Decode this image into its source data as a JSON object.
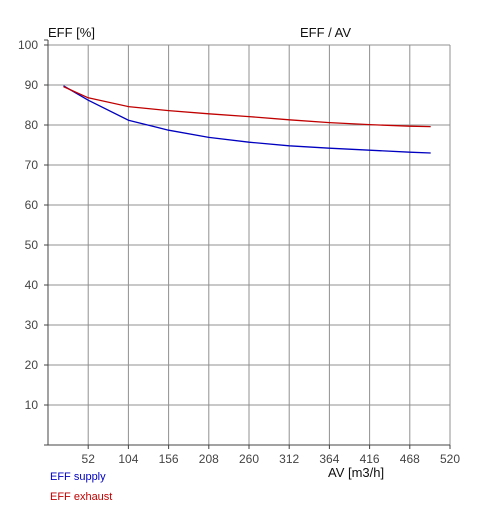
{
  "chart_data": {
    "type": "line",
    "title": "EFF / AV",
    "ylabel": "EFF [%]",
    "xlabel": "AV [m3/h]",
    "xlim": [
      0,
      520
    ],
    "ylim": [
      0,
      100
    ],
    "x_ticks": [
      52,
      104,
      156,
      208,
      260,
      312,
      364,
      416,
      468,
      520
    ],
    "y_ticks": [
      10,
      20,
      30,
      40,
      50,
      60,
      70,
      80,
      90,
      100
    ],
    "grid": true,
    "legend_position": "bottom-left",
    "series": [
      {
        "name": "EFF supply",
        "color": "#0000c0",
        "points": [
          [
            20,
            89.8
          ],
          [
            52,
            86.2
          ],
          [
            104,
            81.2
          ],
          [
            156,
            78.7
          ],
          [
            208,
            76.9
          ],
          [
            260,
            75.7
          ],
          [
            312,
            74.8
          ],
          [
            364,
            74.2
          ],
          [
            416,
            73.7
          ],
          [
            468,
            73.2
          ],
          [
            495,
            73.0
          ]
        ]
      },
      {
        "name": "EFF exhaust",
        "color": "#c00000",
        "points": [
          [
            20,
            89.6
          ],
          [
            52,
            86.8
          ],
          [
            104,
            84.6
          ],
          [
            156,
            83.6
          ],
          [
            208,
            82.8
          ],
          [
            260,
            82.1
          ],
          [
            312,
            81.3
          ],
          [
            364,
            80.6
          ],
          [
            416,
            80.1
          ],
          [
            468,
            79.7
          ],
          [
            495,
            79.6
          ]
        ]
      }
    ]
  }
}
